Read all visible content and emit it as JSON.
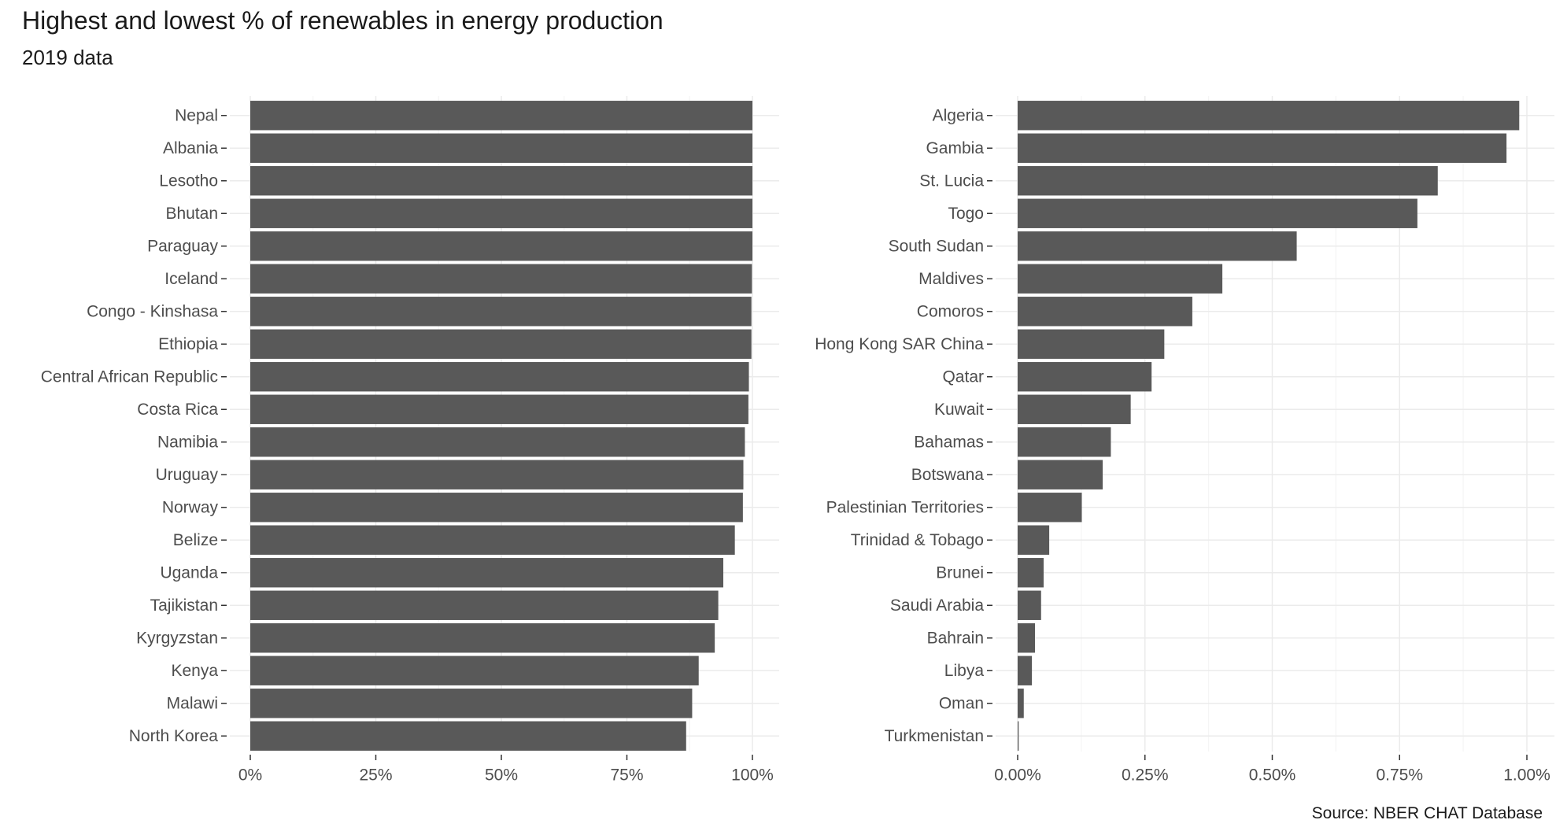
{
  "title": "Highest and lowest % of renewables in energy production",
  "subtitle": "2019 data",
  "caption": "Source: NBER CHAT Database",
  "colors": {
    "bar": "#595959",
    "grid_major": "#ebebeb",
    "grid_minor": "#f5f5f5",
    "axis_text": "#4d4d4d"
  },
  "chart_data": [
    {
      "type": "bar",
      "orientation": "horizontal",
      "categories": [
        "Nepal",
        "Albania",
        "Lesotho",
        "Bhutan",
        "Paraguay",
        "Iceland",
        "Congo - Kinshasa",
        "Ethiopia",
        "Central African Republic",
        "Costa Rica",
        "Namibia",
        "Uruguay",
        "Norway",
        "Belize",
        "Uganda",
        "Tajikistan",
        "Kyrgyzstan",
        "Kenya",
        "Malawi",
        "North Korea"
      ],
      "values": [
        100,
        100,
        100,
        100,
        100,
        99.9,
        99.8,
        99.8,
        99.3,
        99.2,
        98.5,
        98.2,
        98.1,
        96.5,
        94.2,
        93.2,
        92.5,
        89.3,
        88.0,
        86.8
      ],
      "xlim": [
        0,
        100
      ],
      "xticks": [
        0,
        25,
        50,
        75,
        100
      ],
      "xtick_labels": [
        "0%",
        "25%",
        "50%",
        "75%",
        "100%"
      ],
      "grid": true
    },
    {
      "type": "bar",
      "orientation": "horizontal",
      "categories": [
        "Algeria",
        "Gambia",
        "St. Lucia",
        "Togo",
        "South Sudan",
        "Maldives",
        "Comoros",
        "Hong Kong SAR China",
        "Qatar",
        "Kuwait",
        "Bahamas",
        "Botswana",
        "Palestinian Territories",
        "Trinidad & Tobago",
        "Brunei",
        "Saudi Arabia",
        "Bahrain",
        "Libya",
        "Oman",
        "Turkmenistan"
      ],
      "values": [
        0.985,
        0.96,
        0.825,
        0.785,
        0.548,
        0.402,
        0.343,
        0.288,
        0.263,
        0.222,
        0.183,
        0.167,
        0.126,
        0.062,
        0.051,
        0.046,
        0.034,
        0.028,
        0.012,
        0.002
      ],
      "xlim": [
        0,
        1
      ],
      "xticks": [
        0,
        0.25,
        0.5,
        0.75,
        1
      ],
      "xtick_labels": [
        "0.00%",
        "0.25%",
        "0.50%",
        "0.75%",
        "1.00%"
      ],
      "grid": true
    }
  ]
}
